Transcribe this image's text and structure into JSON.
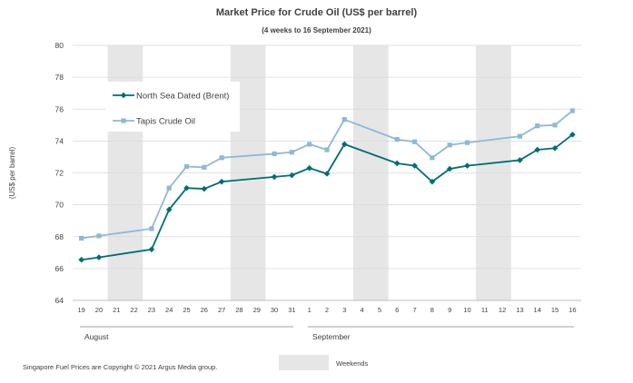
{
  "chart_data": {
    "type": "line",
    "title": "Market Price for Crude Oil  (US$  per barrel)",
    "subtitle": "(4 weeks to 16 September 2021)",
    "ylabel": "(US$ per barrel)",
    "xlabel": "",
    "ylim": [
      64,
      80
    ],
    "yticks": [
      64,
      66,
      68,
      70,
      72,
      74,
      76,
      78,
      80
    ],
    "categories": [
      "19",
      "20",
      "21",
      "22",
      "23",
      "24",
      "25",
      "26",
      "27",
      "28",
      "29",
      "30",
      "31",
      "1",
      "2",
      "3",
      "4",
      "5",
      "6",
      "7",
      "8",
      "9",
      "10",
      "11",
      "12",
      "13",
      "14",
      "15",
      "16"
    ],
    "month_labels": [
      {
        "label": "August",
        "start_index": 0,
        "end_index": 12
      },
      {
        "label": "September",
        "start_index": 13,
        "end_index": 28
      }
    ],
    "weekend_ranges": [
      [
        2,
        3
      ],
      [
        9,
        10
      ],
      [
        16,
        17
      ],
      [
        23,
        24
      ]
    ],
    "series": [
      {
        "name": "North Sea Dated (Brent)",
        "color": "#006E74",
        "marker": "diamond",
        "points": [
          {
            "i": 0,
            "y": 66.55
          },
          {
            "i": 1,
            "y": 66.7
          },
          {
            "i": 4,
            "y": 67.2
          },
          {
            "i": 5,
            "y": 69.7
          },
          {
            "i": 6,
            "y": 71.05
          },
          {
            "i": 7,
            "y": 71.0
          },
          {
            "i": 8,
            "y": 71.45
          },
          {
            "i": 11,
            "y": 71.75
          },
          {
            "i": 12,
            "y": 71.85
          },
          {
            "i": 13,
            "y": 72.3
          },
          {
            "i": 14,
            "y": 71.95
          },
          {
            "i": 15,
            "y": 73.8
          },
          {
            "i": 18,
            "y": 72.6
          },
          {
            "i": 19,
            "y": 72.45
          },
          {
            "i": 20,
            "y": 71.45
          },
          {
            "i": 21,
            "y": 72.25
          },
          {
            "i": 22,
            "y": 72.45
          },
          {
            "i": 25,
            "y": 72.8
          },
          {
            "i": 26,
            "y": 73.45
          },
          {
            "i": 27,
            "y": 73.55
          },
          {
            "i": 28,
            "y": 74.4
          }
        ]
      },
      {
        "name": "Tapis Crude Oil",
        "color": "#8FB8D7",
        "marker": "square",
        "points": [
          {
            "i": 0,
            "y": 67.9
          },
          {
            "i": 1,
            "y": 68.05
          },
          {
            "i": 4,
            "y": 68.5
          },
          {
            "i": 5,
            "y": 71.05
          },
          {
            "i": 6,
            "y": 72.4
          },
          {
            "i": 7,
            "y": 72.35
          },
          {
            "i": 8,
            "y": 72.95
          },
          {
            "i": 11,
            "y": 73.2
          },
          {
            "i": 12,
            "y": 73.3
          },
          {
            "i": 13,
            "y": 73.8
          },
          {
            "i": 14,
            "y": 73.45
          },
          {
            "i": 15,
            "y": 75.35
          },
          {
            "i": 18,
            "y": 74.1
          },
          {
            "i": 19,
            "y": 73.95
          },
          {
            "i": 20,
            "y": 72.95
          },
          {
            "i": 21,
            "y": 73.75
          },
          {
            "i": 22,
            "y": 73.9
          },
          {
            "i": 25,
            "y": 74.3
          },
          {
            "i": 26,
            "y": 74.95
          },
          {
            "i": 27,
            "y": 75.0
          },
          {
            "i": 28,
            "y": 75.9
          }
        ]
      }
    ],
    "legend_position": "top-left",
    "grid": true,
    "weekend_shading_color": "#E6E6E6"
  },
  "footer": {
    "copyright": "Singapore  Fuel Prices are Copyright © 2021  Argus Media group.",
    "weekends_label": "Weekends"
  }
}
